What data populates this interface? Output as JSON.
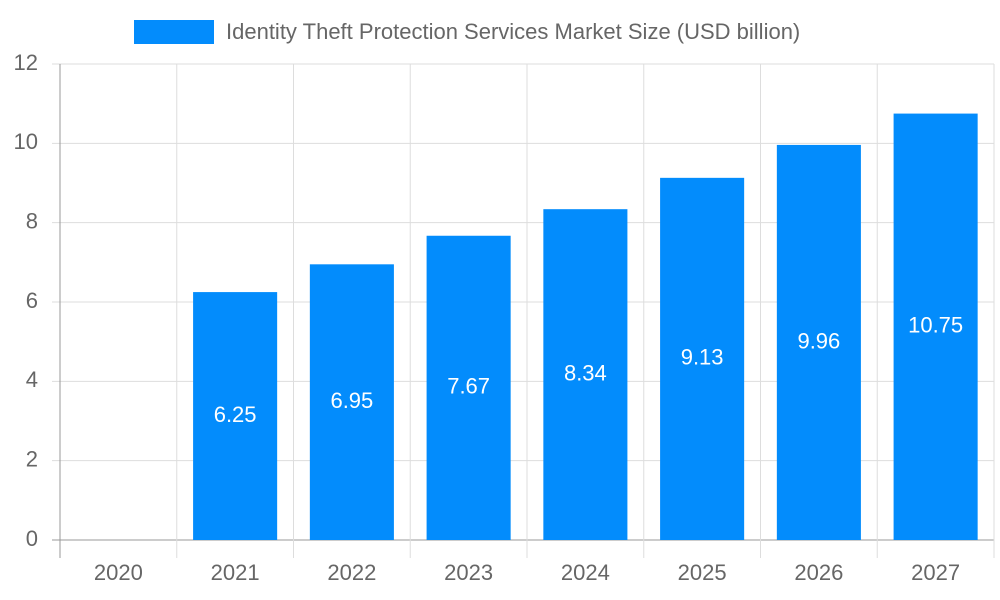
{
  "chart_data": {
    "type": "bar",
    "categories": [
      "2020",
      "2021",
      "2022",
      "2023",
      "2024",
      "2025",
      "2026",
      "2027"
    ],
    "series": [
      {
        "name": "Identity Theft Protection Services Market  Size (USD billion)",
        "color": "#038cfc",
        "values": [
          null,
          6.25,
          6.95,
          7.67,
          8.34,
          9.13,
          9.96,
          10.75
        ]
      }
    ],
    "ylim": [
      0,
      12
    ],
    "yticks": [
      0,
      2,
      4,
      6,
      8,
      10,
      12
    ],
    "grid": true,
    "legend": "top"
  }
}
